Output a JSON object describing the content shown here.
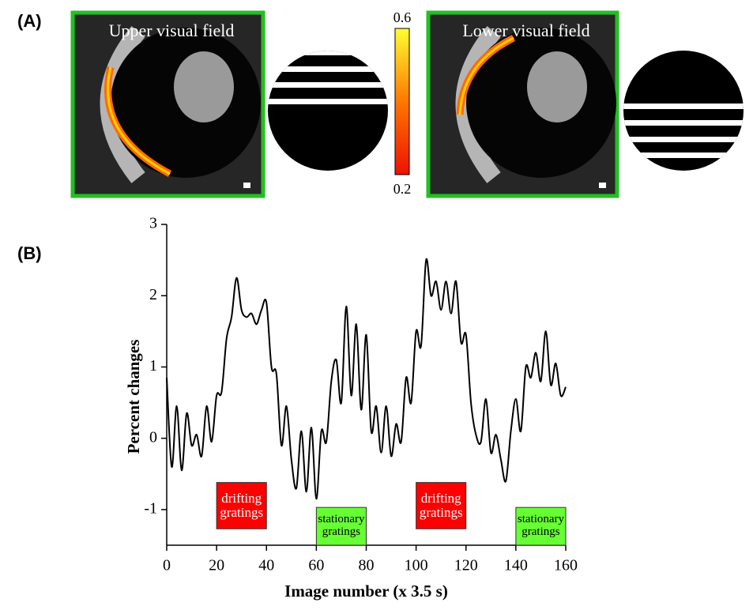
{
  "panel_a": {
    "label": "(A)",
    "images": [
      {
        "title": "Upper visual field"
      },
      {
        "title": "Lower visual field"
      }
    ],
    "colorbar": {
      "max": 0.6,
      "min": 0.2
    }
  },
  "chart_data": {
    "type": "line",
    "panel_label": "(B)",
    "xlabel": "Image number (x 3.5 s)",
    "ylabel": "Percent changes",
    "x": [
      0,
      2,
      4,
      6,
      8,
      10,
      12,
      14,
      16,
      18,
      20,
      22,
      24,
      26,
      28,
      30,
      32,
      34,
      36,
      38,
      40,
      42,
      44,
      46,
      48,
      50,
      52,
      54,
      56,
      58,
      60,
      62,
      64,
      66,
      68,
      70,
      72,
      74,
      76,
      78,
      80,
      82,
      84,
      86,
      88,
      90,
      92,
      94,
      96,
      98,
      100,
      102,
      104,
      106,
      108,
      110,
      112,
      114,
      116,
      118,
      120,
      122,
      124,
      126,
      128,
      130,
      132,
      134,
      136,
      138,
      140,
      142,
      144,
      146,
      148,
      150,
      152,
      154,
      156,
      158,
      160
    ],
    "series": [
      {
        "name": "Percent changes",
        "color": "#000000",
        "values": [
          0.85,
          -0.4,
          0.45,
          -0.45,
          0.35,
          -0.1,
          0.05,
          -0.25,
          0.45,
          -0.05,
          0.6,
          0.65,
          1.4,
          1.7,
          2.25,
          1.8,
          1.7,
          1.75,
          1.6,
          1.8,
          1.9,
          1.0,
          0.9,
          -0.1,
          0.45,
          -0.3,
          -0.7,
          0.1,
          -0.75,
          0.15,
          -0.85,
          0.1,
          -0.05,
          0.8,
          1.1,
          0.5,
          1.85,
          0.6,
          1.6,
          0.4,
          1.45,
          0.1,
          0.45,
          -0.2,
          0.45,
          -0.25,
          0.2,
          -0.05,
          0.85,
          0.5,
          1.5,
          1.3,
          2.5,
          2.0,
          2.2,
          1.8,
          2.2,
          1.75,
          2.2,
          1.35,
          1.45,
          0.5,
          0.05,
          -0.05,
          0.55,
          -0.2,
          0.05,
          -0.3,
          -0.6,
          0.1,
          0.55,
          0.1,
          1.0,
          0.85,
          1.2,
          0.8,
          1.5,
          0.75,
          1.05,
          0.6,
          0.72
        ]
      }
    ],
    "xlim": [
      0,
      160
    ],
    "xticks": [
      0,
      20,
      40,
      60,
      80,
      100,
      120,
      140,
      160
    ],
    "ylim": [
      -1.5,
      3
    ],
    "yticks": [
      -1,
      0,
      1,
      2,
      3
    ],
    "annotations": [
      {
        "text": "drifting gratings",
        "xrange": [
          20,
          40
        ],
        "yrange": [
          -1.27,
          -0.62
        ],
        "color": "#ff0000",
        "text_color": "#ffffff"
      },
      {
        "text": "stationary gratings",
        "xrange": [
          60,
          80
        ],
        "yrange": [
          -1.5,
          -0.97
        ],
        "color": "#66ff33",
        "text_color": "#000000"
      },
      {
        "text": "drifting gratings",
        "xrange": [
          100,
          120
        ],
        "yrange": [
          -1.27,
          -0.62
        ],
        "color": "#ff0000",
        "text_color": "#ffffff"
      },
      {
        "text": "stationary gratings",
        "xrange": [
          140,
          160
        ],
        "yrange": [
          -1.5,
          -0.97
        ],
        "color": "#66ff33",
        "text_color": "#000000"
      }
    ]
  }
}
